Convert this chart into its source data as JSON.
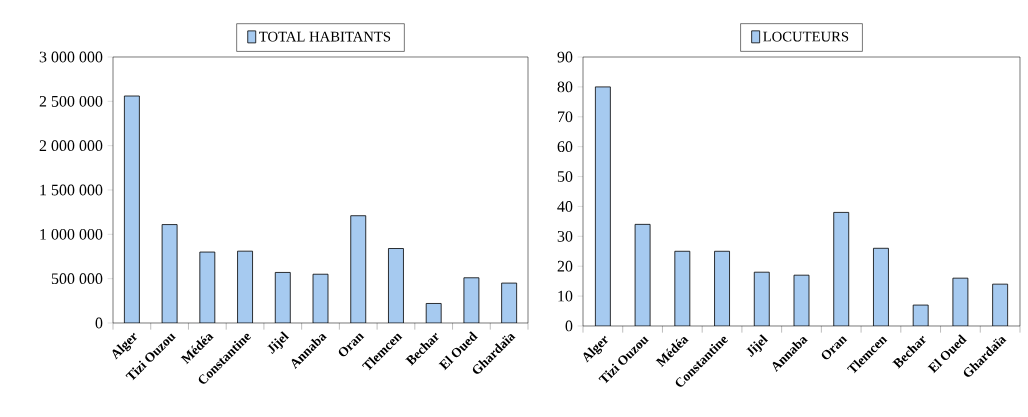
{
  "chart_data": [
    {
      "type": "bar",
      "categories": [
        "Alger",
        "Tizi Ouzou",
        "Médéa",
        "Constantine",
        "Jijel",
        "Annaba",
        "Oran",
        "Tlemcen",
        "Bechar",
        "El Oued",
        "Ghardaïa"
      ],
      "series": [
        {
          "name": "TOTAL HABITANTS",
          "color": "#a6caf0",
          "values": [
            2560000,
            1110000,
            800000,
            810000,
            570000,
            550000,
            1210000,
            840000,
            220000,
            510000,
            450000
          ]
        }
      ],
      "ylim": [
        0,
        3000000
      ],
      "yticks": [
        {
          "value": 0,
          "label": "0"
        },
        {
          "value": 500000,
          "label": "500 000"
        },
        {
          "value": 1000000,
          "label": "1 000 000"
        },
        {
          "value": 1500000,
          "label": "1 500 000"
        },
        {
          "value": 2000000,
          "label": "2 000 000"
        },
        {
          "value": 2500000,
          "label": "2 500 000"
        },
        {
          "value": 3000000,
          "label": "3 000 000"
        }
      ],
      "legend": "top"
    },
    {
      "type": "bar",
      "categories": [
        "Alger",
        "Tizi Ouzou",
        "Médéa",
        "Constantine",
        "Jijel",
        "Annaba",
        "Oran",
        "Tlemcen",
        "Bechar",
        "El Oued",
        "Ghardaïa"
      ],
      "series": [
        {
          "name": "LOCUTEURS",
          "color": "#a6caf0",
          "values": [
            80,
            34,
            25,
            25,
            18,
            17,
            38,
            26,
            7,
            16,
            14
          ]
        }
      ],
      "ylim": [
        0,
        90
      ],
      "yticks": [
        0,
        10,
        20,
        30,
        40,
        50,
        60,
        70,
        80,
        90
      ],
      "legend": "top"
    }
  ]
}
